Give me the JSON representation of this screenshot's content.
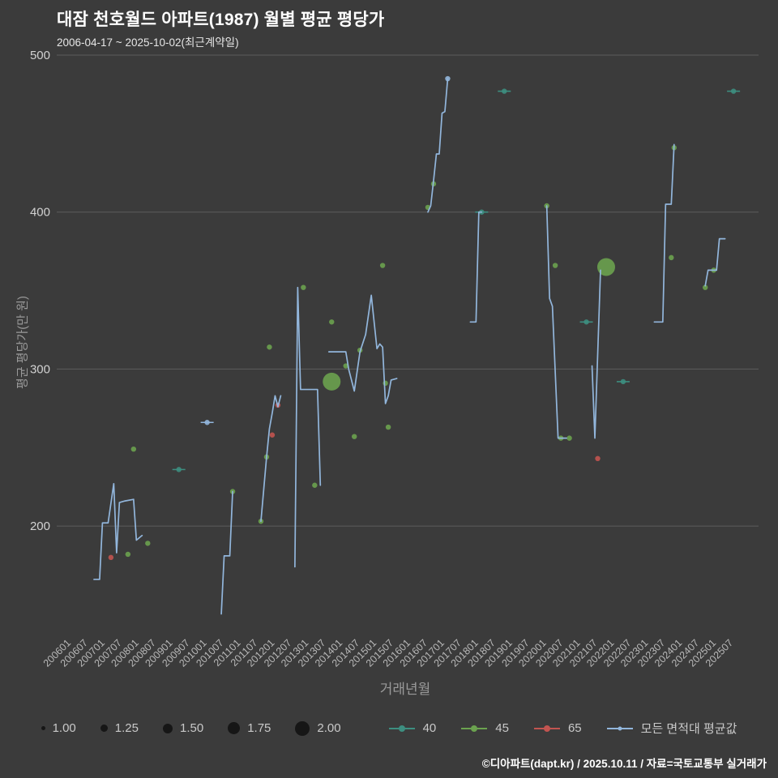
{
  "header": {
    "title": "대잠 천호월드 아파트(1987) 월별 평균 평당가",
    "subtitle": "2006-04-17 ~ 2025-10-02(최근계약일)"
  },
  "footer": {
    "credit": "©디아파트(dapt.kr) / 2025.10.11 / 자료=국토교통부 실거래가"
  },
  "chart_data": {
    "type": "scatter+line",
    "title": "대잠 천호월드 아파트(1987) 월별 평균 평당가",
    "subtitle": "2006-04-17 ~ 2025-10-02(최근계약일)",
    "xlabel": "거래년월",
    "ylabel": "평균 평당가(만 원)",
    "ylim": [
      140,
      500
    ],
    "y_ticks": [
      500,
      400,
      300,
      200
    ],
    "x_ticks": [
      "200601",
      "200607",
      "200701",
      "200707",
      "200801",
      "200807",
      "200901",
      "200907",
      "201001",
      "201007",
      "201101",
      "201107",
      "201201",
      "201207",
      "201301",
      "201307",
      "201401",
      "201407",
      "201501",
      "201507",
      "201601",
      "201607",
      "201701",
      "201707",
      "201801",
      "201807",
      "201901",
      "201907",
      "202001",
      "202007",
      "202101",
      "202107",
      "202201",
      "202207",
      "202301",
      "202307",
      "202401",
      "202407",
      "202501",
      "202507"
    ],
    "grid": true,
    "legend_position": "bottom",
    "legend_sizes": [
      "1.00",
      "1.25",
      "1.50",
      "1.75",
      "2.00"
    ],
    "series": [
      {
        "name": "40",
        "type": "scatter",
        "color": "#3d8e80",
        "points": [
          {
            "m": "200903",
            "v": 236,
            "dash": true
          },
          {
            "m": "201802",
            "v": 400,
            "dash": true
          },
          {
            "m": "201810",
            "v": 477,
            "dash": true
          },
          {
            "m": "202103",
            "v": 330,
            "dash": true
          },
          {
            "m": "202204",
            "v": 292,
            "dash": true
          },
          {
            "m": "202507",
            "v": 477,
            "dash": true
          }
        ]
      },
      {
        "name": "45",
        "type": "scatter",
        "color": "#6ba24f",
        "points": [
          {
            "m": "200709",
            "v": 182
          },
          {
            "m": "200711",
            "v": 249
          },
          {
            "m": "200804",
            "v": 189
          },
          {
            "m": "201010",
            "v": 222
          },
          {
            "m": "201108",
            "v": 203
          },
          {
            "m": "201110",
            "v": 244
          },
          {
            "m": "201111",
            "v": 314
          },
          {
            "m": "201211",
            "v": 352
          },
          {
            "m": "201303",
            "v": 226
          },
          {
            "m": "201309",
            "v": 330
          },
          {
            "m": "201309",
            "v": 292,
            "size": 2.0
          },
          {
            "m": "201402",
            "v": 302
          },
          {
            "m": "201405",
            "v": 257
          },
          {
            "m": "201407",
            "v": 312
          },
          {
            "m": "201503",
            "v": 366
          },
          {
            "m": "201504",
            "v": 291
          },
          {
            "m": "201505",
            "v": 263
          },
          {
            "m": "201607",
            "v": 403
          },
          {
            "m": "201609",
            "v": 418
          },
          {
            "m": "202001",
            "v": 404
          },
          {
            "m": "202004",
            "v": 366
          },
          {
            "m": "202006",
            "v": 256
          },
          {
            "m": "202009",
            "v": 256
          },
          {
            "m": "202110",
            "v": 365,
            "size": 2.0
          },
          {
            "m": "202309",
            "v": 371
          },
          {
            "m": "202310",
            "v": 441
          },
          {
            "m": "202409",
            "v": 352
          },
          {
            "m": "202412",
            "v": 363
          }
        ]
      },
      {
        "name": "65",
        "type": "scatter",
        "color": "#c25450",
        "points": [
          {
            "m": "200703",
            "v": 180
          },
          {
            "m": "201112",
            "v": 258
          },
          {
            "m": "201202",
            "v": 277
          },
          {
            "m": "202107",
            "v": 243
          }
        ]
      },
      {
        "name": "모든 면적대 평균값",
        "type": "line",
        "color": "#92b6dc",
        "segments": [
          [
            [
              "200609",
              166
            ],
            [
              "200611",
              166
            ],
            [
              "200612",
              202
            ],
            [
              "200702",
              202
            ],
            [
              "200704",
              227
            ],
            [
              "200705",
              183
            ],
            [
              "200706",
              215
            ],
            [
              "200708",
              216
            ],
            [
              "200711",
              217
            ],
            [
              "200712",
              191
            ],
            [
              "200802",
              194
            ]
          ],
          [
            [
              "201006",
              144
            ],
            [
              "201007",
              181
            ],
            [
              "201009",
              181
            ],
            [
              "201010",
              222
            ]
          ],
          [
            [
              "201108",
              203
            ],
            [
              "201110",
              244
            ],
            [
              "201111",
              262
            ],
            [
              "201112",
              272
            ],
            [
              "201201",
              283
            ],
            [
              "201202",
              276
            ],
            [
              "201203",
              283
            ]
          ],
          [
            [
              "201208",
              174
            ],
            [
              "201209",
              352
            ],
            [
              "201210",
              287
            ],
            [
              "201304",
              287
            ],
            [
              "201305",
              226
            ]
          ],
          [
            [
              "201308",
              311
            ],
            [
              "201402",
              311
            ],
            [
              "201403",
              300
            ],
            [
              "201405",
              286
            ],
            [
              "201407",
              311
            ],
            [
              "201409",
              322
            ],
            [
              "201411",
              347
            ],
            [
              "201501",
              313
            ],
            [
              "201502",
              316
            ],
            [
              "201503",
              314
            ],
            [
              "201504",
              278
            ],
            [
              "201505",
              283
            ],
            [
              "201506",
              293
            ],
            [
              "201508",
              294
            ]
          ],
          [
            [
              "201607",
              400
            ],
            [
              "201608",
              404
            ],
            [
              "201609",
              420
            ],
            [
              "201610",
              437
            ],
            [
              "201611",
              437
            ],
            [
              "201612",
              463
            ],
            [
              "201701",
              464
            ],
            [
              "201702",
              485
            ]
          ],
          [
            [
              "201710",
              330
            ],
            [
              "201712",
              330
            ],
            [
              "201801",
              400
            ],
            [
              "201802",
              400
            ]
          ],
          [
            [
              "202001",
              404
            ],
            [
              "202002",
              345
            ],
            [
              "202003",
              340
            ],
            [
              "202005",
              256
            ],
            [
              "202008",
              256
            ]
          ],
          [
            [
              "202105",
              302
            ],
            [
              "202106",
              256
            ],
            [
              "202108",
              363
            ]
          ],
          [
            [
              "202303",
              330
            ],
            [
              "202306",
              330
            ],
            [
              "202307",
              405
            ],
            [
              "202309",
              405
            ],
            [
              "202310",
              443
            ]
          ],
          [
            [
              "202409",
              353
            ],
            [
              "202410",
              363
            ],
            [
              "202501",
              363
            ],
            [
              "202502",
              383
            ],
            [
              "202504",
              383
            ]
          ]
        ],
        "points": [
          {
            "m": "201001",
            "v": 266,
            "dash": true
          },
          {
            "m": "201702",
            "v": 485
          }
        ]
      }
    ]
  }
}
